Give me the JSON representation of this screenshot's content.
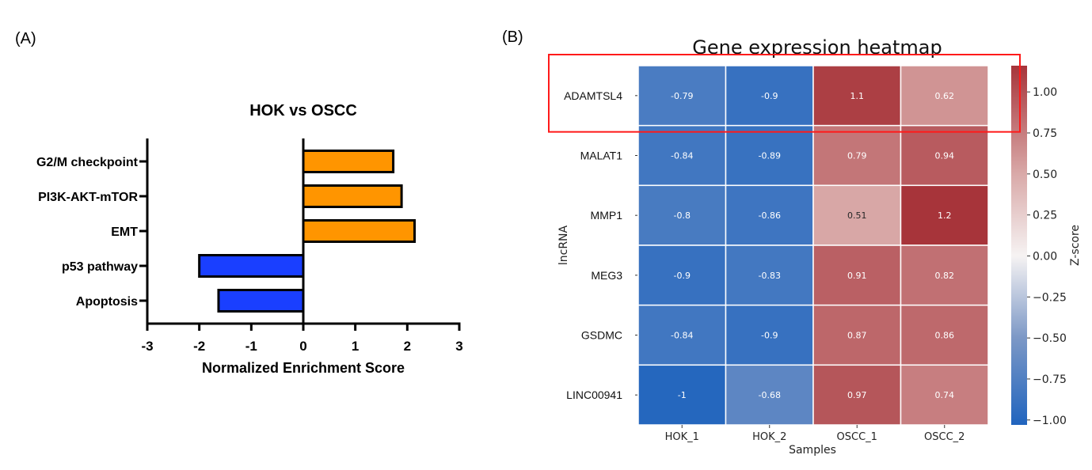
{
  "panels": {
    "a_label": "(A)",
    "b_label": "(B)"
  },
  "chart_data": [
    {
      "type": "bar",
      "orientation": "horizontal",
      "title": "HOK vs OSCC",
      "xlabel": "Normalized Enrichment Score",
      "ylabel": "",
      "xlim": [
        -3,
        3
      ],
      "xticks": [
        "-3",
        "-2",
        "-1",
        "0",
        "1",
        "2",
        "3"
      ],
      "xtick_values": [
        -3,
        -2,
        -1,
        0,
        1,
        2,
        3
      ],
      "categories": [
        "G2/M checkpoint",
        "PI3K-AKT-mTOR",
        "EMT",
        "p53 pathway",
        "Apoptosis"
      ],
      "values": [
        1.73,
        1.89,
        2.14,
        -2.0,
        -1.63
      ],
      "positive_color": "#ff9500",
      "negative_color": "#1a3fff",
      "edge_color": "#000000",
      "grid": false,
      "legend": "none"
    },
    {
      "type": "heatmap",
      "title": "Gene expression heatmap",
      "xlabel": "Samples",
      "ylabel": "lncRNA",
      "columns": [
        "HOK_1",
        "HOK_2",
        "OSCC_1",
        "OSCC_2"
      ],
      "rows": [
        "ADAMTSL4",
        "MALAT1",
        "MMP1",
        "MEG3",
        "GSDMC",
        "LINC00941"
      ],
      "values": [
        [
          -0.79,
          -0.9,
          1.1,
          0.62
        ],
        [
          -0.84,
          -0.89,
          0.79,
          0.94
        ],
        [
          -0.8,
          -0.86,
          0.51,
          1.2
        ],
        [
          -0.9,
          -0.83,
          0.91,
          0.82
        ],
        [
          -0.84,
          -0.9,
          0.87,
          0.86
        ],
        [
          -1,
          -0.68,
          0.97,
          0.74
        ]
      ],
      "annotations": [
        [
          "-0.79",
          "-0.9",
          "1.1",
          "0.62"
        ],
        [
          "-0.84",
          "-0.89",
          "0.79",
          "0.94"
        ],
        [
          "-0.8",
          "-0.86",
          "0.51",
          "1.2"
        ],
        [
          "-0.9",
          "-0.83",
          "0.91",
          "0.82"
        ],
        [
          "-0.84",
          "-0.9",
          "0.87",
          "0.86"
        ],
        [
          "-1",
          "-0.68",
          "0.97",
          "0.74"
        ]
      ],
      "colorbar": {
        "label": "Z-score",
        "range": [
          -1.03,
          1.16
        ],
        "ticks": [
          1.0,
          0.75,
          0.5,
          0.25,
          0.0,
          -0.25,
          -0.5,
          -0.75,
          -1.0
        ],
        "tick_labels": [
          "1.00",
          "0.75",
          "0.50",
          "0.25",
          "0.00",
          "−0.25",
          "−0.50",
          "−0.75",
          "−1.00"
        ],
        "placement": "right"
      },
      "colormap_stops": [
        {
          "v": -1.03,
          "color": "#2064be"
        },
        {
          "v": -0.5,
          "color": "#7c98c6"
        },
        {
          "v": 0.0,
          "color": "#f6f3f3"
        },
        {
          "v": 0.5,
          "color": "#d9a9a8"
        },
        {
          "v": 1.16,
          "color": "#a7343a"
        }
      ],
      "highlight_box": {
        "row": "ADAMTSL4",
        "color": "#ff1a1a"
      },
      "grid": false
    }
  ]
}
